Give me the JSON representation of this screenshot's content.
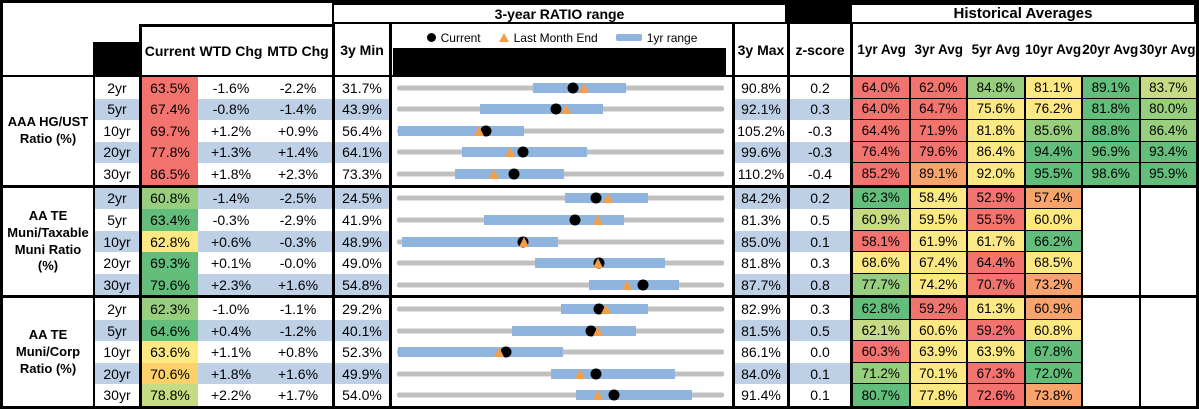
{
  "header": {
    "range_title": "3-year RATIO range",
    "hist_title": "Historical Averages",
    "columns": {
      "current": "Current",
      "wtd": "WTD Chg",
      "mtd": "MTD Chg",
      "min": "3y Min",
      "max": "3y Max",
      "z": "z-score"
    },
    "avg_columns": [
      "1yr Avg",
      "3yr Avg",
      "5yr Avg",
      "10yr Avg",
      "20yr Avg",
      "30yr Avg"
    ],
    "legend": [
      {
        "marker": "current-dot",
        "label": "Current"
      },
      {
        "marker": "last-month-triangle",
        "label": "Last Month End"
      },
      {
        "marker": "one-year-range-bar",
        "label": "1yr range"
      }
    ]
  },
  "palette": {
    "R": "#F3736F",
    "O": "#F9A46D",
    "GD": "#FCD169",
    "Y": "#FDE983",
    "YG": "#C6DB84",
    "LG": "#98CF7E",
    "G": "#63BE7B",
    "W": "#FFFFFF",
    "band": "#BDD0E6",
    "bar": "#8FB4DE",
    "track": "#C0C0C0",
    "triangle": "#F29E49",
    "dot": "#000000"
  },
  "chart_data": {
    "type": "table",
    "groups": [
      {
        "label": "AAA HG/UST Ratio (%)",
        "label_lines": [
          "AAA HG/UST",
          "Ratio (%)"
        ],
        "rows": [
          {
            "tenor": "2yr",
            "banded": false,
            "current": "63.5%",
            "current_color": "R",
            "wtd": "-1.6%",
            "mtd": "-2.2%",
            "min": "31.7%",
            "max": "90.8%",
            "z": "0.2",
            "range": {
              "min": 31.7,
              "max": 90.8,
              "bar_low": 56.3,
              "bar_high": 73.1,
              "current": 63.5,
              "last_month": 65.5
            },
            "avgs": [
              [
                "64.0%",
                "R"
              ],
              [
                "62.0%",
                "R"
              ],
              [
                "84.8%",
                "LG"
              ],
              [
                "81.1%",
                "Y"
              ],
              [
                "89.1%",
                "G"
              ],
              [
                "83.7%",
                "YG"
              ]
            ]
          },
          {
            "tenor": "5yr",
            "banded": true,
            "current": "67.4%",
            "current_color": "R",
            "wtd": "-0.8%",
            "mtd": "-1.4%",
            "min": "43.9%",
            "max": "92.1%",
            "z": "0.3",
            "range": {
              "min": 43.9,
              "max": 92.1,
              "bar_low": 56.2,
              "bar_high": 74.2,
              "current": 67.4,
              "last_month": 68.8
            },
            "avgs": [
              [
                "64.0%",
                "R"
              ],
              [
                "64.7%",
                "R"
              ],
              [
                "75.6%",
                "Y"
              ],
              [
                "76.2%",
                "Y"
              ],
              [
                "81.8%",
                "G"
              ],
              [
                "80.0%",
                "LG"
              ]
            ]
          },
          {
            "tenor": "10yr",
            "banded": false,
            "current": "69.7%",
            "current_color": "R",
            "wtd": "+1.2%",
            "mtd": "+0.9%",
            "min": "56.4%",
            "max": "105.2%",
            "z": "-0.3",
            "range": {
              "min": 56.4,
              "max": 105.2,
              "bar_low": 56.6,
              "bar_high": 75.4,
              "current": 69.7,
              "last_month": 68.6
            },
            "avgs": [
              [
                "64.4%",
                "R"
              ],
              [
                "71.9%",
                "R"
              ],
              [
                "81.8%",
                "Y"
              ],
              [
                "85.6%",
                "LG"
              ],
              [
                "88.8%",
                "G"
              ],
              [
                "86.4%",
                "LG"
              ]
            ]
          },
          {
            "tenor": "20yr",
            "banded": true,
            "current": "77.8%",
            "current_color": "R",
            "wtd": "+1.3%",
            "mtd": "+1.4%",
            "min": "64.1%",
            "max": "99.6%",
            "z": "-0.3",
            "range": {
              "min": 64.1,
              "max": 99.6,
              "bar_low": 71.2,
              "bar_high": 84.7,
              "current": 77.8,
              "last_month": 76.4
            },
            "avgs": [
              [
                "76.4%",
                "R"
              ],
              [
                "79.6%",
                "R"
              ],
              [
                "86.4%",
                "Y"
              ],
              [
                "94.4%",
                "G"
              ],
              [
                "96.9%",
                "G"
              ],
              [
                "93.4%",
                "G"
              ]
            ]
          },
          {
            "tenor": "30yr",
            "banded": false,
            "current": "86.5%",
            "current_color": "R",
            "wtd": "+1.8%",
            "mtd": "+2.3%",
            "min": "73.3%",
            "max": "110.2%",
            "z": "-0.4",
            "range": {
              "min": 73.3,
              "max": 110.2,
              "bar_low": 79.9,
              "bar_high": 92.2,
              "current": 86.5,
              "last_month": 84.3
            },
            "avgs": [
              [
                "85.2%",
                "R"
              ],
              [
                "89.1%",
                "O"
              ],
              [
                "92.0%",
                "Y"
              ],
              [
                "95.5%",
                "G"
              ],
              [
                "98.6%",
                "G"
              ],
              [
                "95.9%",
                "G"
              ]
            ]
          }
        ]
      },
      {
        "label": "AA TE Muni/Taxable Muni Ratio (%)",
        "label_lines": [
          "AA TE",
          "Muni/Taxable",
          "Muni Ratio",
          "(%)"
        ],
        "rows": [
          {
            "tenor": "2yr",
            "banded": true,
            "current": "60.8%",
            "current_color": "LG",
            "wtd": "-1.4%",
            "mtd": "-2.5%",
            "min": "24.5%",
            "max": "84.2%",
            "z": "0.2",
            "range": {
              "min": 24.5,
              "max": 84.2,
              "bar_low": 55.1,
              "bar_high": 70.3,
              "current": 60.8,
              "last_month": 63.1
            },
            "avgs": [
              [
                "62.3%",
                "G"
              ],
              [
                "58.4%",
                "Y"
              ],
              [
                "52.9%",
                "R"
              ],
              [
                "57.4%",
                "O"
              ],
              [
                "",
                ""
              ],
              [
                "",
                ""
              ]
            ]
          },
          {
            "tenor": "5yr",
            "banded": false,
            "current": "63.4%",
            "current_color": "G",
            "wtd": "-0.3%",
            "mtd": "-2.9%",
            "min": "41.9%",
            "max": "81.3%",
            "z": "0.5",
            "range": {
              "min": 41.9,
              "max": 81.3,
              "bar_low": 52.4,
              "bar_high": 69.3,
              "current": 63.4,
              "last_month": 66.1
            },
            "avgs": [
              [
                "60.9%",
                "YG"
              ],
              [
                "59.5%",
                "Y"
              ],
              [
                "55.5%",
                "R"
              ],
              [
                "60.0%",
                "Y"
              ],
              [
                "",
                ""
              ],
              [
                "",
                ""
              ]
            ]
          },
          {
            "tenor": "10yr",
            "banded": true,
            "current": "62.8%",
            "current_color": "Y",
            "wtd": "+0.6%",
            "mtd": "-0.3%",
            "min": "48.9%",
            "max": "85.0%",
            "z": "0.1",
            "range": {
              "min": 48.9,
              "max": 85.0,
              "bar_low": 49.4,
              "bar_high": 66.7,
              "current": 62.8,
              "last_month": 62.9
            },
            "avgs": [
              [
                "58.1%",
                "R"
              ],
              [
                "61.9%",
                "Y"
              ],
              [
                "61.7%",
                "Y"
              ],
              [
                "66.2%",
                "G"
              ],
              [
                "",
                ""
              ],
              [
                "",
                ""
              ]
            ]
          },
          {
            "tenor": "20yr",
            "banded": false,
            "current": "69.3%",
            "current_color": "G",
            "wtd": "+0.1%",
            "mtd": "-0.0%",
            "min": "49.0%",
            "max": "81.8%",
            "z": "0.3",
            "range": {
              "min": 49.0,
              "max": 81.8,
              "bar_low": 62.8,
              "bar_high": 75.9,
              "current": 69.3,
              "last_month": 69.2
            },
            "avgs": [
              [
                "68.6%",
                "Y"
              ],
              [
                "67.4%",
                "Y"
              ],
              [
                "64.4%",
                "R"
              ],
              [
                "68.5%",
                "Y"
              ],
              [
                "",
                ""
              ],
              [
                "",
                ""
              ]
            ]
          },
          {
            "tenor": "30yr",
            "banded": true,
            "current": "79.6%",
            "current_color": "G",
            "wtd": "+2.3%",
            "mtd": "+1.6%",
            "min": "54.8%",
            "max": "87.7%",
            "z": "0.8",
            "range": {
              "min": 54.8,
              "max": 87.7,
              "bar_low": 74.1,
              "bar_high": 83.2,
              "current": 79.6,
              "last_month": 77.9
            },
            "avgs": [
              [
                "77.7%",
                "LG"
              ],
              [
                "74.2%",
                "Y"
              ],
              [
                "70.7%",
                "R"
              ],
              [
                "73.2%",
                "O"
              ],
              [
                "",
                ""
              ],
              [
                "",
                ""
              ]
            ]
          }
        ]
      },
      {
        "label": "AA TE Muni/Corp Ratio (%)",
        "label_lines": [
          "AA TE",
          "Muni/Corp",
          "Ratio (%)"
        ],
        "rows": [
          {
            "tenor": "2yr",
            "banded": false,
            "current": "62.3%",
            "current_color": "LG",
            "wtd": "-1.0%",
            "mtd": "-1.1%",
            "min": "29.2%",
            "max": "82.9%",
            "z": "0.3",
            "range": {
              "min": 29.2,
              "max": 82.9,
              "bar_low": 56.2,
              "bar_high": 70.4,
              "current": 62.3,
              "last_month": 63.5
            },
            "avgs": [
              [
                "62.8%",
                "G"
              ],
              [
                "59.2%",
                "R"
              ],
              [
                "61.3%",
                "Y"
              ],
              [
                "60.9%",
                "O"
              ],
              [
                "",
                ""
              ],
              [
                "",
                ""
              ]
            ]
          },
          {
            "tenor": "5yr",
            "banded": true,
            "current": "64.6%",
            "current_color": "G",
            "wtd": "+0.4%",
            "mtd": "-1.2%",
            "min": "40.1%",
            "max": "81.5%",
            "z": "0.5",
            "range": {
              "min": 40.1,
              "max": 81.5,
              "bar_low": 54.7,
              "bar_high": 70.3,
              "current": 64.6,
              "last_month": 65.6
            },
            "avgs": [
              [
                "62.1%",
                "YG"
              ],
              [
                "60.6%",
                "Y"
              ],
              [
                "59.2%",
                "R"
              ],
              [
                "60.8%",
                "Y"
              ],
              [
                "",
                ""
              ],
              [
                "",
                ""
              ]
            ]
          },
          {
            "tenor": "10yr",
            "banded": false,
            "current": "63.6%",
            "current_color": "Y",
            "wtd": "+1.1%",
            "mtd": "+0.8%",
            "min": "52.3%",
            "max": "86.1%",
            "z": "0.0",
            "range": {
              "min": 52.3,
              "max": 86.1,
              "bar_low": 52.4,
              "bar_high": 69.5,
              "current": 63.6,
              "last_month": 62.8
            },
            "avgs": [
              [
                "60.3%",
                "R"
              ],
              [
                "63.9%",
                "Y"
              ],
              [
                "63.9%",
                "Y"
              ],
              [
                "67.8%",
                "G"
              ],
              [
                "",
                ""
              ],
              [
                "",
                ""
              ]
            ]
          },
          {
            "tenor": "20yr",
            "banded": true,
            "current": "70.6%",
            "current_color": "GD",
            "wtd": "+1.8%",
            "mtd": "+1.6%",
            "min": "49.9%",
            "max": "84.0%",
            "z": "0.1",
            "range": {
              "min": 49.9,
              "max": 84.0,
              "bar_low": 66.0,
              "bar_high": 78.9,
              "current": 70.6,
              "last_month": 69.0
            },
            "avgs": [
              [
                "71.2%",
                "LG"
              ],
              [
                "70.1%",
                "Y"
              ],
              [
                "67.3%",
                "R"
              ],
              [
                "72.0%",
                "G"
              ],
              [
                "",
                ""
              ],
              [
                "",
                ""
              ]
            ]
          },
          {
            "tenor": "30yr",
            "banded": false,
            "current": "78.8%",
            "current_color": "YG",
            "wtd": "+2.2%",
            "mtd": "+1.7%",
            "min": "54.0%",
            "max": "91.4%",
            "z": "0.1",
            "range": {
              "min": 54.0,
              "max": 91.4,
              "bar_low": 74.5,
              "bar_high": 87.7,
              "current": 78.8,
              "last_month": 77.0
            },
            "avgs": [
              [
                "80.7%",
                "G"
              ],
              [
                "77.8%",
                "Y"
              ],
              [
                "72.6%",
                "R"
              ],
              [
                "73.8%",
                "O"
              ],
              [
                "",
                ""
              ],
              [
                "",
                ""
              ]
            ]
          }
        ]
      }
    ]
  }
}
